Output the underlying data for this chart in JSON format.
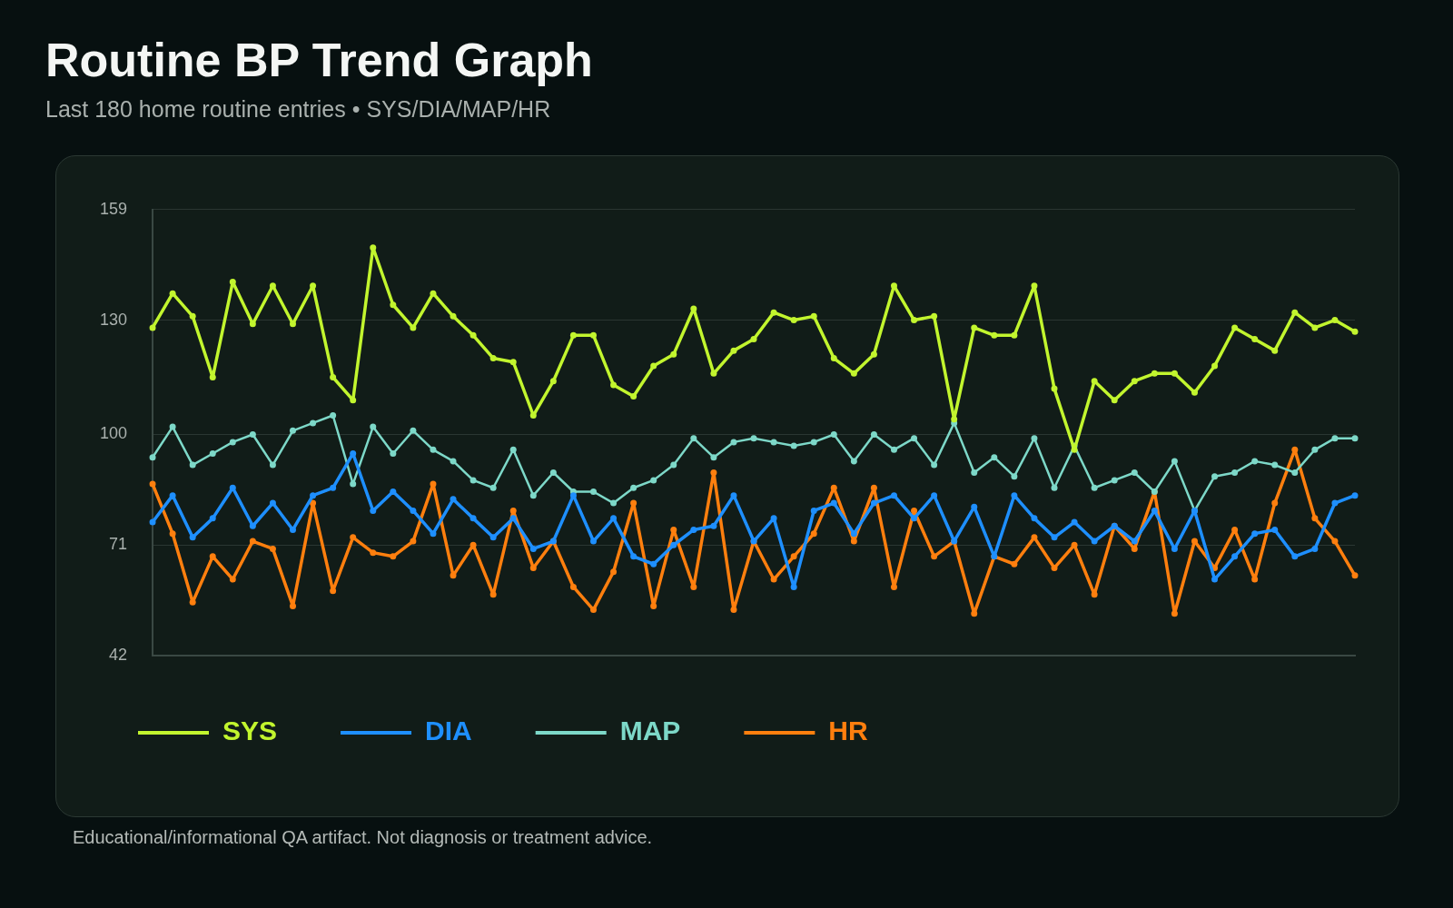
{
  "chart_data": {
    "type": "line",
    "title": "Routine BP Trend Graph",
    "subtitle": "Last 180 home routine entries • SYS/DIA/MAP/HR",
    "annotations": [
      "Educational/informational QA artifact. Not diagnosis or treatment advice."
    ],
    "categories": [
      null,
      null,
      null,
      null,
      null,
      null,
      null,
      null,
      null,
      null,
      null,
      null,
      null,
      null,
      null,
      null,
      null,
      null,
      null,
      null,
      null,
      null,
      null,
      null,
      null,
      null,
      null,
      null,
      null,
      null,
      null,
      null,
      null,
      null,
      null,
      null,
      null,
      null,
      null,
      null,
      null,
      null,
      null,
      null,
      null,
      null,
      null,
      null,
      null,
      null,
      null,
      null,
      null,
      null,
      null,
      null,
      null,
      null,
      null,
      null,
      null
    ],
    "ylim": [
      42,
      159
    ],
    "yticks": [
      42,
      71,
      100,
      130,
      159
    ],
    "grid": "y",
    "legend": "bottom left",
    "tick_labels": "y",
    "marker": "circle",
    "line_style": "solid",
    "series": [
      {
        "name": "SYS",
        "color": "#c2f52e",
        "values": [
          128,
          137,
          131,
          115,
          140,
          129,
          139,
          129,
          139,
          115,
          109,
          149,
          134,
          128,
          137,
          131,
          126,
          120,
          119,
          105,
          114,
          126,
          126,
          113,
          110,
          118,
          121,
          133,
          116,
          122,
          125,
          132,
          130,
          131,
          120,
          116,
          121,
          139,
          130,
          131,
          104,
          128,
          126,
          126,
          139,
          112,
          96,
          114,
          109,
          114,
          116,
          116,
          111,
          118,
          128,
          125,
          122,
          132,
          128,
          130,
          127
        ]
      },
      {
        "name": "DIA",
        "color": "#1e8fff",
        "values": [
          77,
          84,
          73,
          78,
          86,
          76,
          82,
          75,
          84,
          86,
          95,
          80,
          85,
          80,
          74,
          83,
          78,
          73,
          78,
          70,
          72,
          84,
          72,
          78,
          68,
          66,
          71,
          75,
          76,
          84,
          72,
          78,
          60,
          80,
          82,
          74,
          82,
          84,
          78,
          84,
          72,
          81,
          68,
          84,
          78,
          73,
          77,
          72,
          76,
          72,
          80,
          70,
          80,
          62,
          68,
          74,
          75,
          68,
          70,
          82,
          84
        ]
      },
      {
        "name": "MAP",
        "color": "#7dd8c8",
        "values": [
          94,
          102,
          92,
          95,
          98,
          100,
          92,
          101,
          103,
          105,
          87,
          102,
          95,
          101,
          96,
          93,
          88,
          86,
          96,
          84,
          90,
          85,
          85,
          82,
          86,
          88,
          92,
          99,
          94,
          98,
          99,
          98,
          97,
          98,
          100,
          93,
          100,
          96,
          99,
          92,
          103,
          90,
          94,
          89,
          99,
          86,
          97,
          86,
          88,
          90,
          85,
          93,
          80,
          89,
          90,
          93,
          92,
          90,
          96,
          99,
          99
        ]
      },
      {
        "name": "HR",
        "color": "#ff7f0e",
        "values": [
          87,
          74,
          56,
          68,
          62,
          72,
          70,
          55,
          82,
          59,
          73,
          69,
          68,
          72,
          87,
          63,
          71,
          58,
          80,
          65,
          72,
          60,
          54,
          64,
          82,
          55,
          75,
          60,
          90,
          54,
          72,
          62,
          68,
          74,
          86,
          72,
          86,
          60,
          80,
          68,
          72,
          53,
          68,
          66,
          73,
          65,
          71,
          58,
          76,
          70,
          85,
          53,
          72,
          65,
          75,
          62,
          82,
          96,
          78,
          72,
          63
        ]
      }
    ]
  }
}
